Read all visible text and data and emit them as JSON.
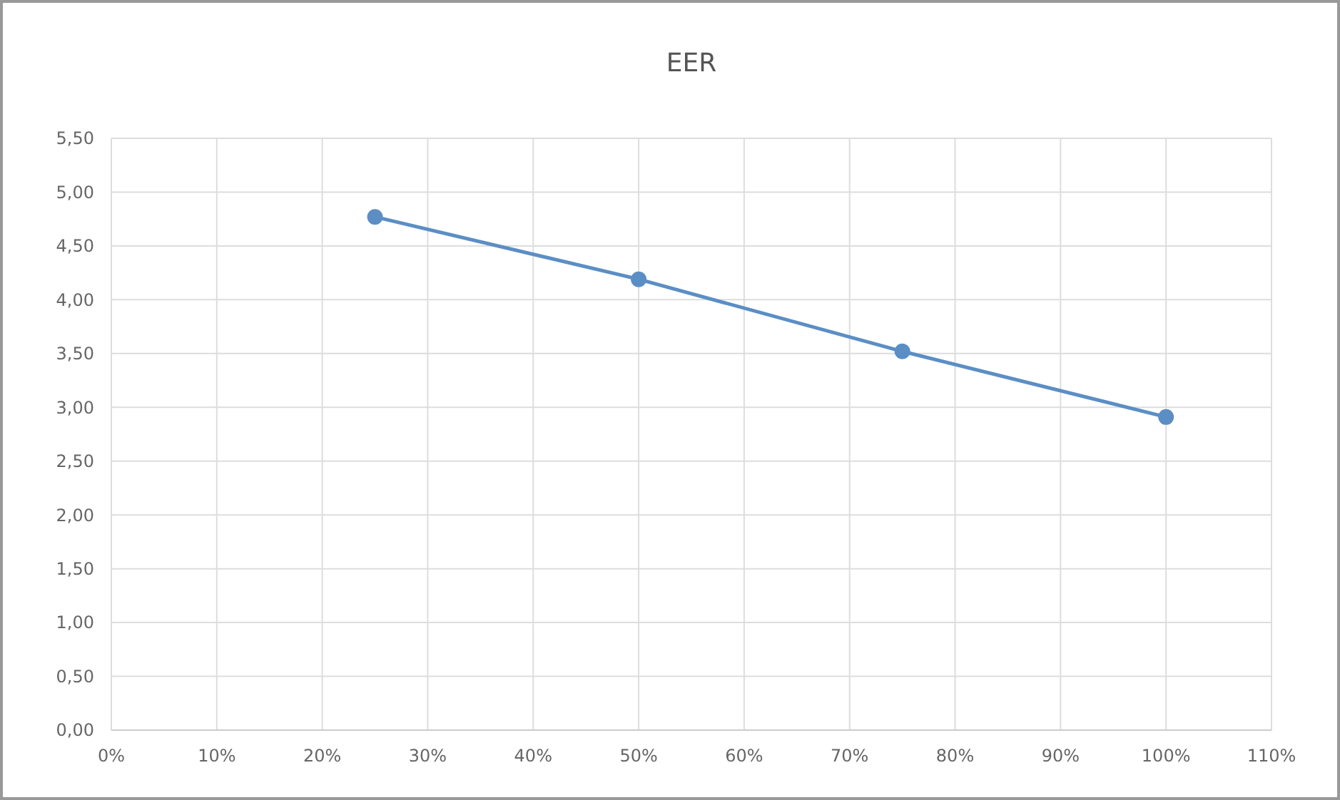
{
  "chart_data": {
    "type": "line",
    "title": "EER",
    "x": [
      25,
      50,
      75,
      100
    ],
    "series": [
      {
        "color": "#5b8ec4",
        "values": [
          4.77,
          4.19,
          3.52,
          2.91
        ]
      }
    ],
    "xlim": [
      0,
      110
    ],
    "xticks": [
      {
        "value": 0,
        "label": "0%"
      },
      {
        "value": 10,
        "label": "10%"
      },
      {
        "value": 20,
        "label": "20%"
      },
      {
        "value": 30,
        "label": "30%"
      },
      {
        "value": 40,
        "label": "40%"
      },
      {
        "value": 50,
        "label": "50%"
      },
      {
        "value": 60,
        "label": "60%"
      },
      {
        "value": 70,
        "label": "70%"
      },
      {
        "value": 80,
        "label": "80%"
      },
      {
        "value": 90,
        "label": "90%"
      },
      {
        "value": 100,
        "label": "100%"
      },
      {
        "value": 110,
        "label": "110%"
      }
    ],
    "ylim": [
      0,
      5.5
    ],
    "yticks": [
      {
        "value": 0,
        "label": "0,00"
      },
      {
        "value": 0.5,
        "label": "0,50"
      },
      {
        "value": 1,
        "label": "1,00"
      },
      {
        "value": 1.5,
        "label": "1,50"
      },
      {
        "value": 2,
        "label": "2,00"
      },
      {
        "value": 2.5,
        "label": "2,50"
      },
      {
        "value": 3,
        "label": "3,00"
      },
      {
        "value": 3.5,
        "label": "3,50"
      },
      {
        "value": 4,
        "label": "4,00"
      },
      {
        "value": 4.5,
        "label": "4,50"
      },
      {
        "value": 5,
        "label": "5,00"
      },
      {
        "value": 5.5,
        "label": "5,50"
      }
    ],
    "grid": true,
    "marker": "circle",
    "line_style": "solid"
  }
}
